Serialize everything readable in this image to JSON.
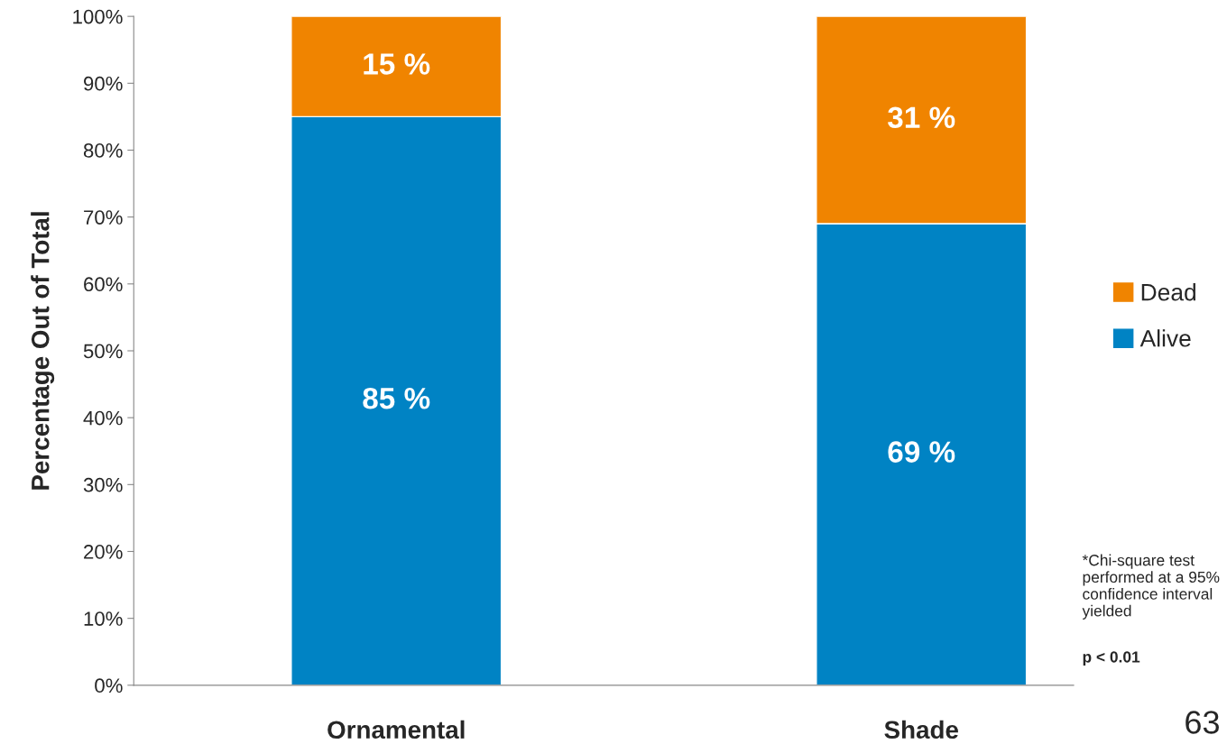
{
  "chart_data": {
    "type": "bar",
    "stacked": true,
    "ylabel": "Percentage Out of Total",
    "categories": [
      "Ornamental",
      "Shade"
    ],
    "series": [
      {
        "name": "Alive",
        "color": "#0083c4",
        "values": [
          85,
          69
        ],
        "value_labels": [
          "85 %",
          "69 %"
        ]
      },
      {
        "name": "Dead",
        "color": "#f08400",
        "values": [
          15,
          31
        ],
        "value_labels": [
          "15 %",
          "31 %"
        ]
      }
    ],
    "ylim": [
      0,
      100
    ],
    "yticks": [
      {
        "value": 0,
        "label": "0%"
      },
      {
        "value": 10,
        "label": "10%"
      },
      {
        "value": 20,
        "label": "20%"
      },
      {
        "value": 30,
        "label": "30%"
      },
      {
        "value": 40,
        "label": "40%"
      },
      {
        "value": 50,
        "label": "50%"
      },
      {
        "value": 60,
        "label": "60%"
      },
      {
        "value": 70,
        "label": "70%"
      },
      {
        "value": 80,
        "label": "80%"
      },
      {
        "value": 90,
        "label": "90%"
      },
      {
        "value": 100,
        "label": "100%"
      }
    ],
    "grid": false,
    "legend": "right",
    "annotations": [
      "*Chi-square test performed at a 95% confidence interval yielded",
      "p < 0.01",
      "63"
    ]
  }
}
